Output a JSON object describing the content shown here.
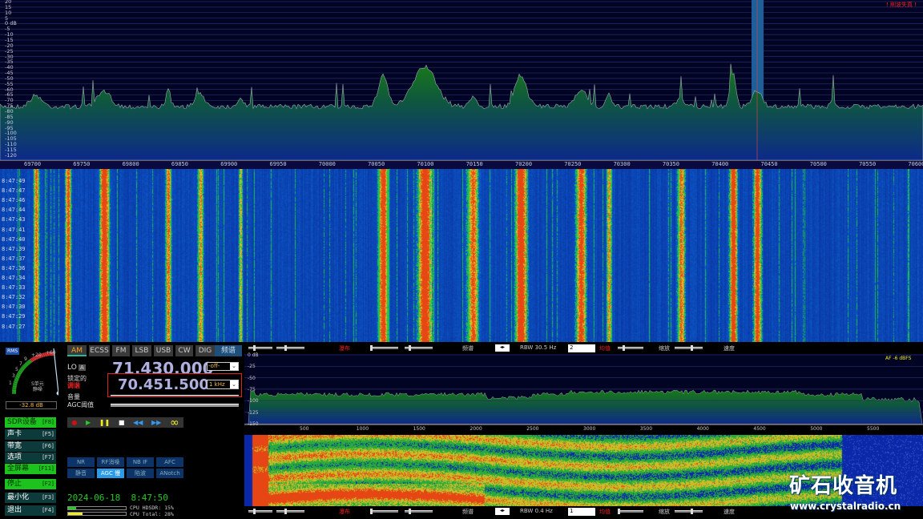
{
  "spectrum": {
    "db_labels": [
      "20",
      "15",
      "10",
      "5",
      "0 dB",
      "-5",
      "-10",
      "-15",
      "-20",
      "-25",
      "-30",
      "-35",
      "-40",
      "-45",
      "-50",
      "-55",
      "-60",
      "-65",
      "-70",
      "-75",
      "-80",
      "-85",
      "-90",
      "-95",
      "-100",
      "-105",
      "-110",
      "-115",
      "-120"
    ],
    "freq_labels_khz": [
      "69700",
      "69750",
      "69800",
      "69850",
      "69900",
      "69950",
      "70000",
      "70050",
      "70100",
      "70150",
      "70200",
      "70250",
      "70300",
      "70350",
      "70400",
      "70450",
      "70500",
      "70550",
      "70600"
    ],
    "clip_warning": "! 削波失真 !",
    "colors": {
      "background": "#020424",
      "fill": "#1a6e1a",
      "passband": "#1c5f9a"
    }
  },
  "waterfall": {
    "time_labels": [
      "8:47:49",
      "8:47:47",
      "8:47:46",
      "8:47:44",
      "8:47:43",
      "8:47:41",
      "8:47:40",
      "8:47:39",
      "8:47:37",
      "8:47:36",
      "8:47:34",
      "8:47:33",
      "8:47:32",
      "8:47:30",
      "8:47:29",
      "8:47:27"
    ]
  },
  "meter": {
    "mode": "RMS",
    "scale": [
      "1",
      "3",
      "5",
      "7",
      "9",
      "+20",
      "+60"
    ],
    "label": "S单元\n静噪",
    "reading": "-32.8 dB"
  },
  "modes": [
    {
      "label": "AM",
      "active": true
    },
    {
      "label": "ECSS"
    },
    {
      "label": "FM"
    },
    {
      "label": "LSB"
    },
    {
      "label": "USB"
    },
    {
      "label": "CW"
    },
    {
      "label": "DIG"
    }
  ],
  "bandwidth_button": "频谱",
  "lo": {
    "label": "LO",
    "badge": "A",
    "frequency": "71.430.000",
    "step": "-off-"
  },
  "tune": {
    "label1": "锁定的",
    "label2": "调谐",
    "frequency": "70.451.500",
    "step": "1 kHz"
  },
  "volume_label": "音量",
  "agc_label": "AGC阈值",
  "transport": [
    "record",
    "play",
    "pause",
    "stop",
    "rewind",
    "fast-forward",
    "loop"
  ],
  "function_buttons": [
    {
      "label": "SDR设备",
      "key": "[F8]",
      "active": true
    },
    {
      "label": "声卡",
      "key": "[F5]"
    },
    {
      "label": "带宽",
      "key": "[F6]"
    },
    {
      "label": "选项",
      "key": "[F7]"
    },
    {
      "label": "全屏幕",
      "key": "[F11]",
      "active": true
    },
    {
      "label": "停止",
      "key": "[F2]",
      "active": true
    },
    {
      "label": "最小化",
      "key": "[F3]"
    },
    {
      "label": "退出",
      "key": "[F4]"
    }
  ],
  "dsp_buttons": [
    {
      "label": "NR"
    },
    {
      "label": "RF消噪"
    },
    {
      "label": "NB IF"
    },
    {
      "label": "AFC"
    },
    {
      "label": "静音"
    },
    {
      "label": "AGC 慢",
      "active": true
    },
    {
      "label": "陷波"
    },
    {
      "label": "ANotch"
    }
  ],
  "datetime": "2024-06-18  8:47:50",
  "cpu": {
    "hdsdr_label": "CPU HDSDR:",
    "hdsdr": "15%",
    "hdsdr_value": 15,
    "total_label": "CPU Total:",
    "total": "28%",
    "total_value": 28
  },
  "af": {
    "top_toolbar": {
      "waterfall": "瀑布",
      "spectrum": "频谱",
      "rbw": "RBW  30.5 Hz",
      "avg": "2",
      "avg_label": "均值",
      "zoom": "缩放",
      "speed": "速度"
    },
    "bottom_toolbar": {
      "waterfall": "瀑布",
      "spectrum": "频谱",
      "rbw": "RBW  0.4 Hz",
      "avg": "1",
      "avg_label": "均值",
      "zoom": "缩放",
      "speed": "速度"
    },
    "db_labels": [
      "0 dB",
      "-25",
      "-50",
      "-75",
      "-100",
      "-125",
      "-150"
    ],
    "level": "AF -6 dBFS",
    "freq_labels": [
      "500",
      "1000",
      "1500",
      "2000",
      "2500",
      "3000",
      "3500",
      "4000",
      "4500",
      "5000",
      "5500"
    ]
  },
  "watermark": {
    "logo": "矿石收音机",
    "url": "www.crystalradio.cn"
  }
}
